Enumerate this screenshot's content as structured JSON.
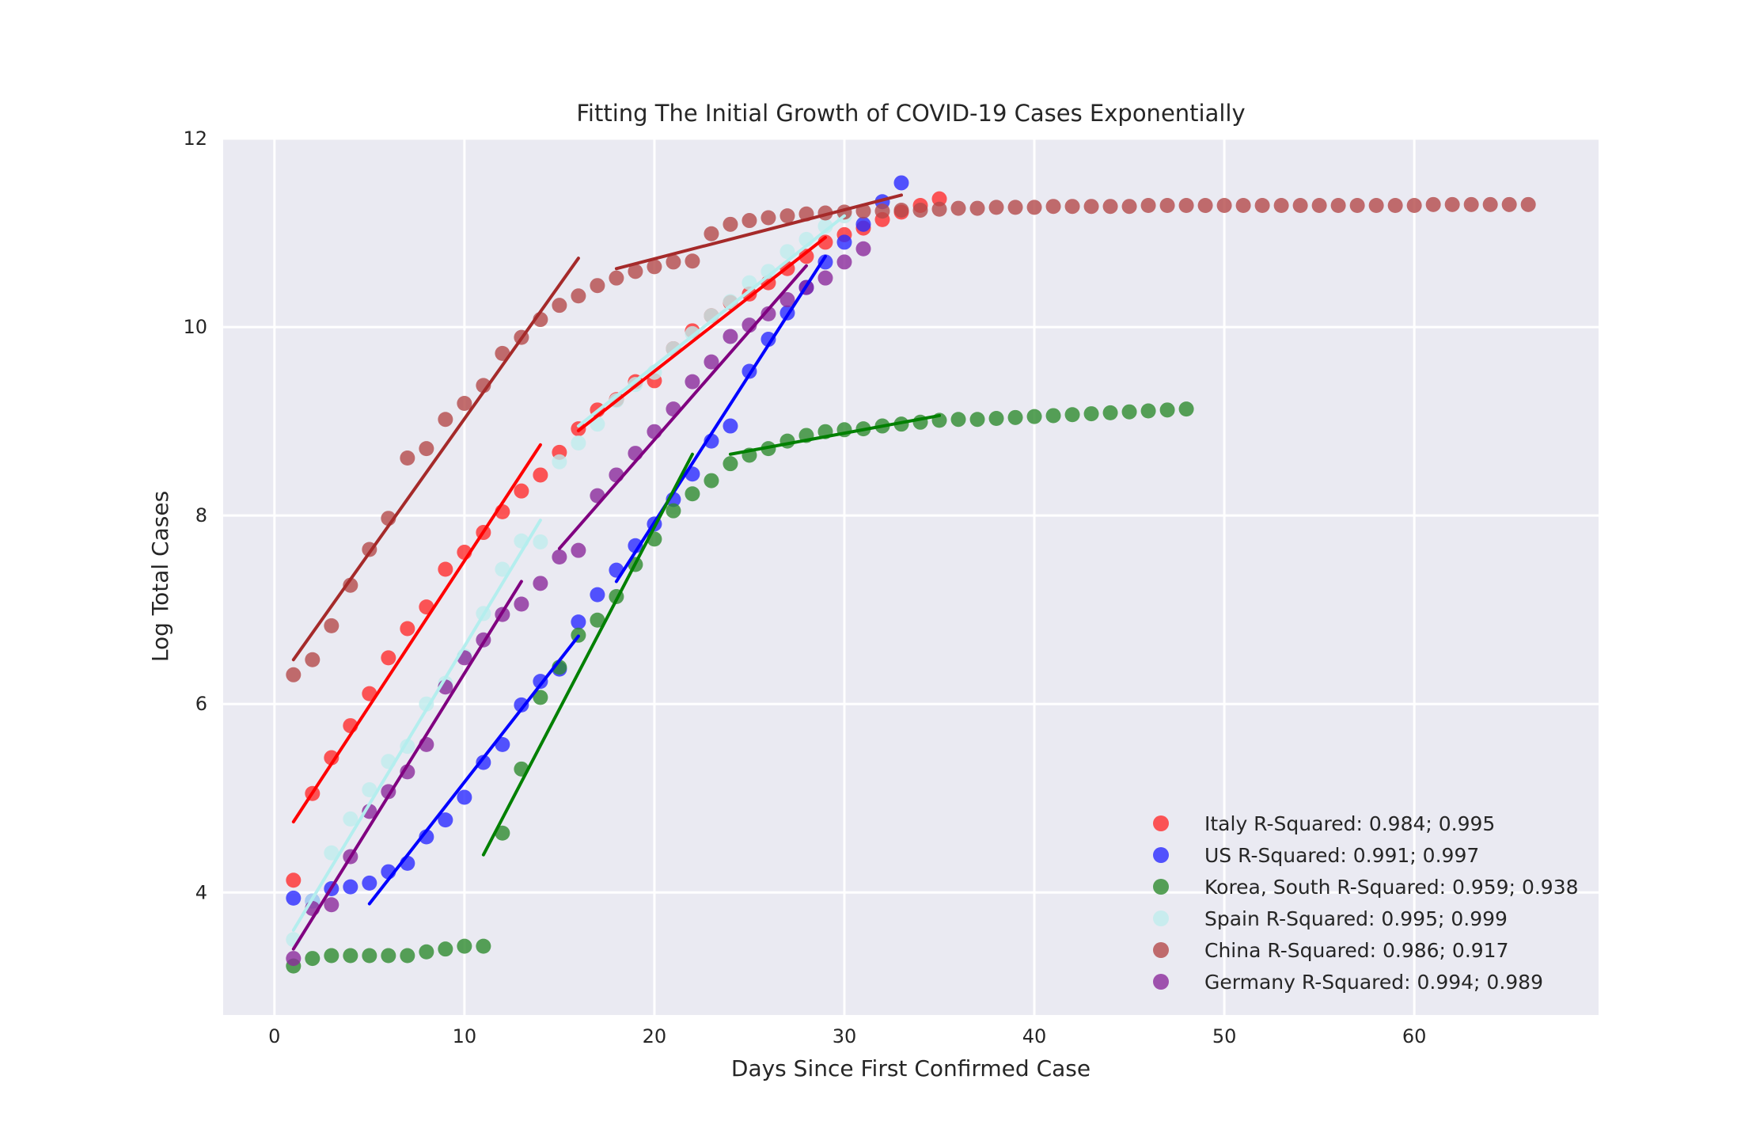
{
  "chart_data": {
    "type": "scatter",
    "title": "Fitting The Initial Growth of COVID-19 Cases Exponentially",
    "xlabel": "Days Since First Confirmed Case",
    "ylabel": "Log Total Cases",
    "xlim": [
      -2.7,
      69.7
    ],
    "ylim": [
      2.7,
      12.0
    ],
    "xticks": [
      0,
      10,
      20,
      30,
      40,
      50,
      60
    ],
    "yticks": [
      4,
      6,
      8,
      10,
      12
    ],
    "grid": true,
    "background": "#eaeaf2",
    "legend_position": "lower-right",
    "series": [
      {
        "name": "Italy R-Squared: 0.984; 0.995",
        "color": "#ff2d2d",
        "line_color": "#ff0000",
        "x": [
          1,
          2,
          3,
          4,
          5,
          6,
          7,
          8,
          9,
          10,
          11,
          12,
          13,
          14,
          15,
          16,
          17,
          18,
          19,
          20,
          21,
          22,
          23,
          24,
          25,
          26,
          27,
          28,
          29,
          30,
          31,
          32,
          33,
          34,
          35
        ],
        "y": [
          4.13,
          5.05,
          5.43,
          5.77,
          6.11,
          6.49,
          6.8,
          7.03,
          7.43,
          7.61,
          7.82,
          8.04,
          8.26,
          8.43,
          8.67,
          8.92,
          9.12,
          9.23,
          9.42,
          9.43,
          9.77,
          9.96,
          10.12,
          10.26,
          10.35,
          10.47,
          10.62,
          10.75,
          10.9,
          10.98,
          11.05,
          11.14,
          11.22,
          11.29,
          11.36
        ],
        "fits": [
          {
            "x": [
              1,
              14
            ],
            "y": [
              4.75,
              8.75
            ]
          },
          {
            "x": [
              16,
              29
            ],
            "y": [
              8.9,
              10.95
            ]
          }
        ]
      },
      {
        "name": "US R-Squared: 0.991; 0.997",
        "color": "#2b2bff",
        "line_color": "#0000ff",
        "x": [
          1,
          2,
          3,
          4,
          5,
          6,
          7,
          8,
          9,
          10,
          11,
          12,
          13,
          14,
          15,
          16,
          17,
          18,
          19,
          20,
          21,
          22,
          23,
          24,
          25,
          26,
          27,
          28,
          29,
          30,
          31,
          32,
          33
        ],
        "y": [
          3.94,
          3.91,
          4.04,
          4.06,
          4.1,
          4.22,
          4.31,
          4.59,
          4.77,
          5.01,
          5.38,
          5.57,
          5.99,
          6.24,
          6.37,
          6.87,
          7.16,
          7.42,
          7.68,
          7.91,
          8.17,
          8.44,
          8.79,
          8.95,
          9.53,
          9.87,
          10.15,
          10.42,
          10.69,
          10.9,
          11.09,
          11.33,
          11.53
        ],
        "fits": [
          {
            "x": [
              5,
              16
            ],
            "y": [
              3.88,
              6.72
            ]
          },
          {
            "x": [
              18,
              29
            ],
            "y": [
              7.3,
              10.75
            ]
          }
        ]
      },
      {
        "name": "Korea, South R-Squared: 0.959; 0.938",
        "color": "#2e8b2e",
        "line_color": "#008000",
        "x": [
          1,
          2,
          3,
          4,
          5,
          6,
          7,
          8,
          9,
          10,
          11,
          12,
          13,
          14,
          15,
          16,
          17,
          18,
          19,
          20,
          21,
          22,
          23,
          24,
          25,
          26,
          27,
          28,
          29,
          30,
          31,
          32,
          33,
          34,
          35,
          36,
          37,
          38,
          39,
          40,
          41,
          42,
          43,
          44,
          45,
          46,
          47,
          48
        ],
        "y": [
          3.22,
          3.3,
          3.33,
          3.33,
          3.33,
          3.33,
          3.33,
          3.37,
          3.4,
          3.43,
          3.43,
          4.63,
          5.31,
          6.07,
          6.39,
          6.73,
          6.89,
          7.14,
          7.48,
          7.75,
          8.05,
          8.23,
          8.37,
          8.55,
          8.64,
          8.71,
          8.79,
          8.85,
          8.89,
          8.91,
          8.92,
          8.95,
          8.97,
          8.99,
          9.01,
          9.02,
          9.02,
          9.03,
          9.04,
          9.05,
          9.06,
          9.07,
          9.08,
          9.09,
          9.1,
          9.11,
          9.12,
          9.13
        ],
        "fits": [
          {
            "x": [
              11,
              22
            ],
            "y": [
              4.4,
              8.65
            ]
          },
          {
            "x": [
              24,
              35
            ],
            "y": [
              8.65,
              9.06
            ]
          }
        ]
      },
      {
        "name": "Spain R-Squared: 0.995; 0.999",
        "color": "#bfecec",
        "line_color": "#b4eeee",
        "x": [
          1,
          2,
          3,
          4,
          5,
          6,
          7,
          8,
          9,
          10,
          11,
          12,
          13,
          14,
          15,
          16,
          17,
          18,
          19,
          20,
          21,
          22,
          23,
          24,
          25,
          26,
          27,
          28,
          29,
          30
        ],
        "y": [
          3.5,
          3.91,
          4.42,
          4.78,
          5.09,
          5.39,
          5.55,
          6.0,
          6.22,
          6.51,
          6.96,
          7.43,
          7.73,
          7.72,
          8.57,
          8.77,
          8.97,
          9.22,
          9.39,
          9.52,
          9.77,
          9.93,
          10.12,
          10.27,
          10.47,
          10.59,
          10.8,
          10.93,
          11.07,
          11.18
        ],
        "fits": [
          {
            "x": [
              1,
              14
            ],
            "y": [
              3.6,
              7.95
            ]
          },
          {
            "x": [
              16,
              30
            ],
            "y": [
              8.95,
              11.18
            ]
          }
        ]
      },
      {
        "name": "China R-Squared: 0.986; 0.917",
        "color": "#b44a4a",
        "line_color": "#a52a2a",
        "x": [
          1,
          2,
          3,
          4,
          5,
          6,
          7,
          8,
          9,
          10,
          11,
          12,
          13,
          14,
          15,
          16,
          17,
          18,
          19,
          20,
          21,
          22,
          23,
          24,
          25,
          26,
          27,
          28,
          29,
          30,
          31,
          32,
          33,
          34,
          35,
          36,
          37,
          38,
          39,
          40,
          41,
          42,
          43,
          44,
          45,
          46,
          47,
          48,
          49,
          50,
          51,
          52,
          53,
          54,
          55,
          56,
          57,
          58,
          59,
          60,
          61,
          62,
          63,
          64,
          65,
          66
        ],
        "y": [
          6.31,
          6.47,
          6.83,
          7.26,
          7.64,
          7.97,
          8.61,
          8.71,
          9.02,
          9.19,
          9.38,
          9.72,
          9.89,
          10.08,
          10.23,
          10.33,
          10.44,
          10.52,
          10.59,
          10.64,
          10.69,
          10.7,
          10.99,
          11.09,
          11.13,
          11.16,
          11.18,
          11.2,
          11.21,
          11.22,
          11.23,
          11.23,
          11.24,
          11.24,
          11.25,
          11.26,
          11.26,
          11.27,
          11.27,
          11.27,
          11.28,
          11.28,
          11.28,
          11.28,
          11.28,
          11.29,
          11.29,
          11.29,
          11.29,
          11.29,
          11.29,
          11.29,
          11.29,
          11.29,
          11.29,
          11.29,
          11.29,
          11.29,
          11.29,
          11.29,
          11.3,
          11.3,
          11.3,
          11.3,
          11.3,
          11.3
        ],
        "fits": [
          {
            "x": [
              1,
              16
            ],
            "y": [
              6.47,
              10.73
            ]
          },
          {
            "x": [
              18,
              33
            ],
            "y": [
              10.62,
              11.4
            ]
          }
        ]
      },
      {
        "name": "Germany R-Squared: 0.994; 0.989",
        "color": "#8b2a9b",
        "line_color": "#800080",
        "x": [
          1,
          2,
          3,
          4,
          5,
          6,
          7,
          8,
          9,
          10,
          11,
          12,
          13,
          14,
          15,
          16,
          17,
          18,
          19,
          20,
          21,
          22,
          23,
          24,
          25,
          26,
          27,
          28,
          29,
          30,
          31
        ],
        "y": [
          3.3,
          3.83,
          3.87,
          4.38,
          4.86,
          5.07,
          5.28,
          5.57,
          6.18,
          6.49,
          6.68,
          6.95,
          7.06,
          7.28,
          7.56,
          7.63,
          8.21,
          8.43,
          8.66,
          8.89,
          9.13,
          9.42,
          9.63,
          9.9,
          10.02,
          10.14,
          10.29,
          10.42,
          10.52,
          10.69,
          10.83
        ],
        "fits": [
          {
            "x": [
              1,
              13
            ],
            "y": [
              3.4,
              7.3
            ]
          },
          {
            "x": [
              15,
              28
            ],
            "y": [
              7.65,
              10.65
            ]
          }
        ]
      }
    ]
  }
}
